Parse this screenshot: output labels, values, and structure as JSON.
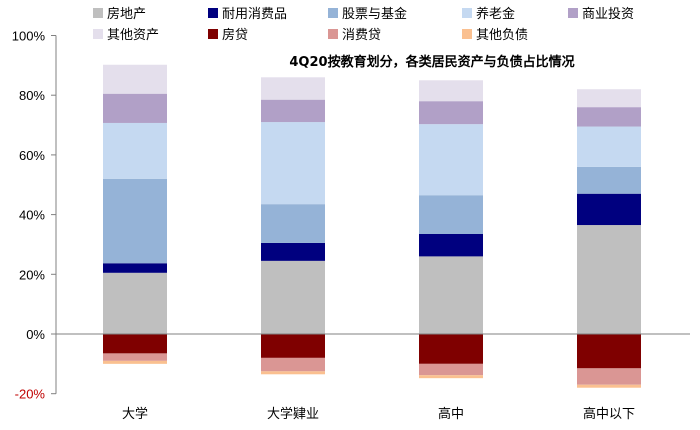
{
  "chart_data": {
    "type": "bar",
    "stacked": true,
    "title": "4Q20按教育划分，各类居民资产与负债占比情况",
    "categories": [
      "大学",
      "大学肄业",
      "高中",
      "高中以下"
    ],
    "ylim": [
      -20,
      100
    ],
    "yticks": [
      -20,
      0,
      20,
      40,
      60,
      80,
      100
    ],
    "ytick_labels": [
      "-20%",
      "0%",
      "20%",
      "40%",
      "60%",
      "80%",
      "100%"
    ],
    "grid": false,
    "legend_position": "top",
    "series": [
      {
        "name": "房地产",
        "color": "#bfbfbf",
        "values": [
          20.5,
          24.5,
          26,
          36.5
        ]
      },
      {
        "name": "耐用消费品",
        "color": "#00007f",
        "values": [
          3.2,
          6,
          7.5,
          10.5
        ]
      },
      {
        "name": "股票与基金",
        "color": "#95b3d7",
        "values": [
          28.3,
          13,
          13,
          9
        ]
      },
      {
        "name": "养老金",
        "color": "#c5d9f1",
        "values": [
          18.7,
          27.5,
          23.8,
          13.5
        ]
      },
      {
        "name": "商业投资",
        "color": "#b1a0c7",
        "values": [
          9.8,
          7.5,
          7.7,
          6.5
        ]
      },
      {
        "name": "其他资产",
        "color": "#e4dfec",
        "values": [
          9.7,
          7.5,
          7,
          6
        ]
      },
      {
        "name": "房贷",
        "color": "#7f0000",
        "values": [
          -6.5,
          -8,
          -10,
          -11.5
        ]
      },
      {
        "name": "消费贷",
        "color": "#da9694",
        "values": [
          -2.5,
          -4.5,
          -3.8,
          -5.5
        ]
      },
      {
        "name": "其他负债",
        "color": "#fac090",
        "values": [
          -1,
          -1,
          -1,
          -1
        ]
      }
    ]
  }
}
